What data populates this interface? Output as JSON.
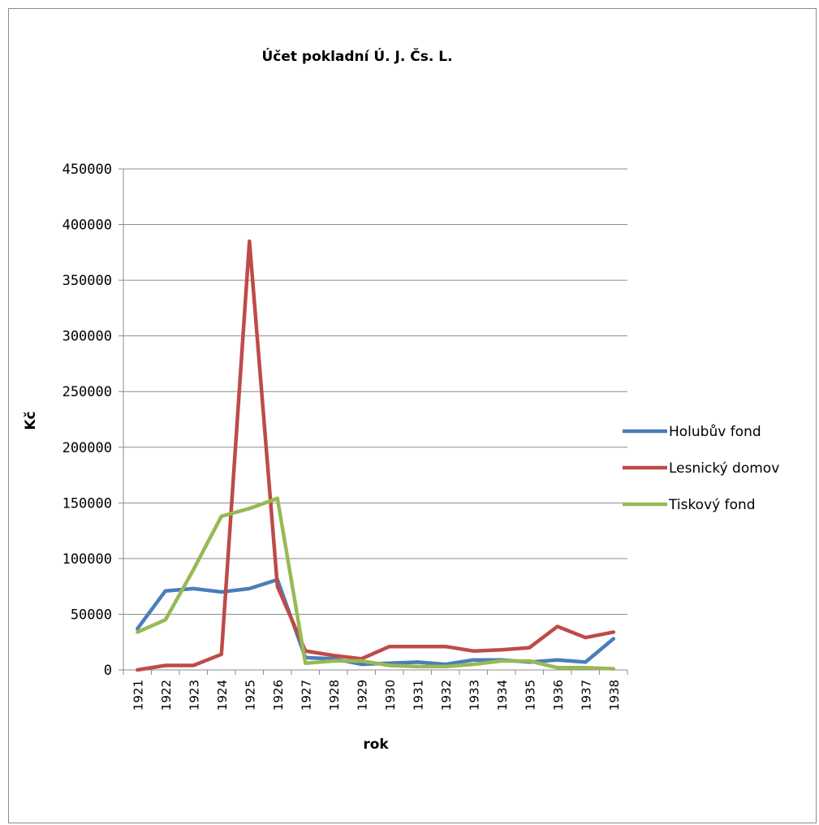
{
  "chart_data": {
    "type": "line",
    "title": "Účet pokladní Ú. J. Čs. L.",
    "xlabel": "rok",
    "ylabel": "Kč",
    "ylim": [
      0,
      450000
    ],
    "yticks": [
      0,
      50000,
      100000,
      150000,
      200000,
      250000,
      300000,
      350000,
      400000,
      450000
    ],
    "grid": true,
    "legend_position": "right",
    "categories": [
      "1921",
      "1922",
      "1923",
      "1924",
      "1925",
      "1926",
      "1927",
      "1928",
      "1929",
      "1930",
      "1931",
      "1932",
      "1933",
      "1934",
      "1935",
      "1936",
      "1937",
      "1938"
    ],
    "series": [
      {
        "name": "Holubův fond",
        "color": "#4a7ebb",
        "values": [
          37000,
          71000,
          73000,
          70000,
          73000,
          81000,
          11000,
          10000,
          5000,
          6000,
          7000,
          5000,
          9000,
          9000,
          7000,
          9000,
          7000,
          28000
        ]
      },
      {
        "name": "Lesnický domov",
        "color": "#be4b48",
        "values": [
          0,
          4000,
          4000,
          14000,
          385000,
          75000,
          17000,
          13000,
          10000,
          21000,
          21000,
          21000,
          17000,
          18000,
          20000,
          39000,
          29000,
          34000
        ]
      },
      {
        "name": "Tiskový fond",
        "color": "#98b954",
        "values": [
          34000,
          45000,
          90000,
          138000,
          145000,
          154000,
          6000,
          8000,
          8000,
          4000,
          3000,
          3000,
          5000,
          8000,
          8000,
          2000,
          2000,
          1000
        ]
      }
    ]
  }
}
